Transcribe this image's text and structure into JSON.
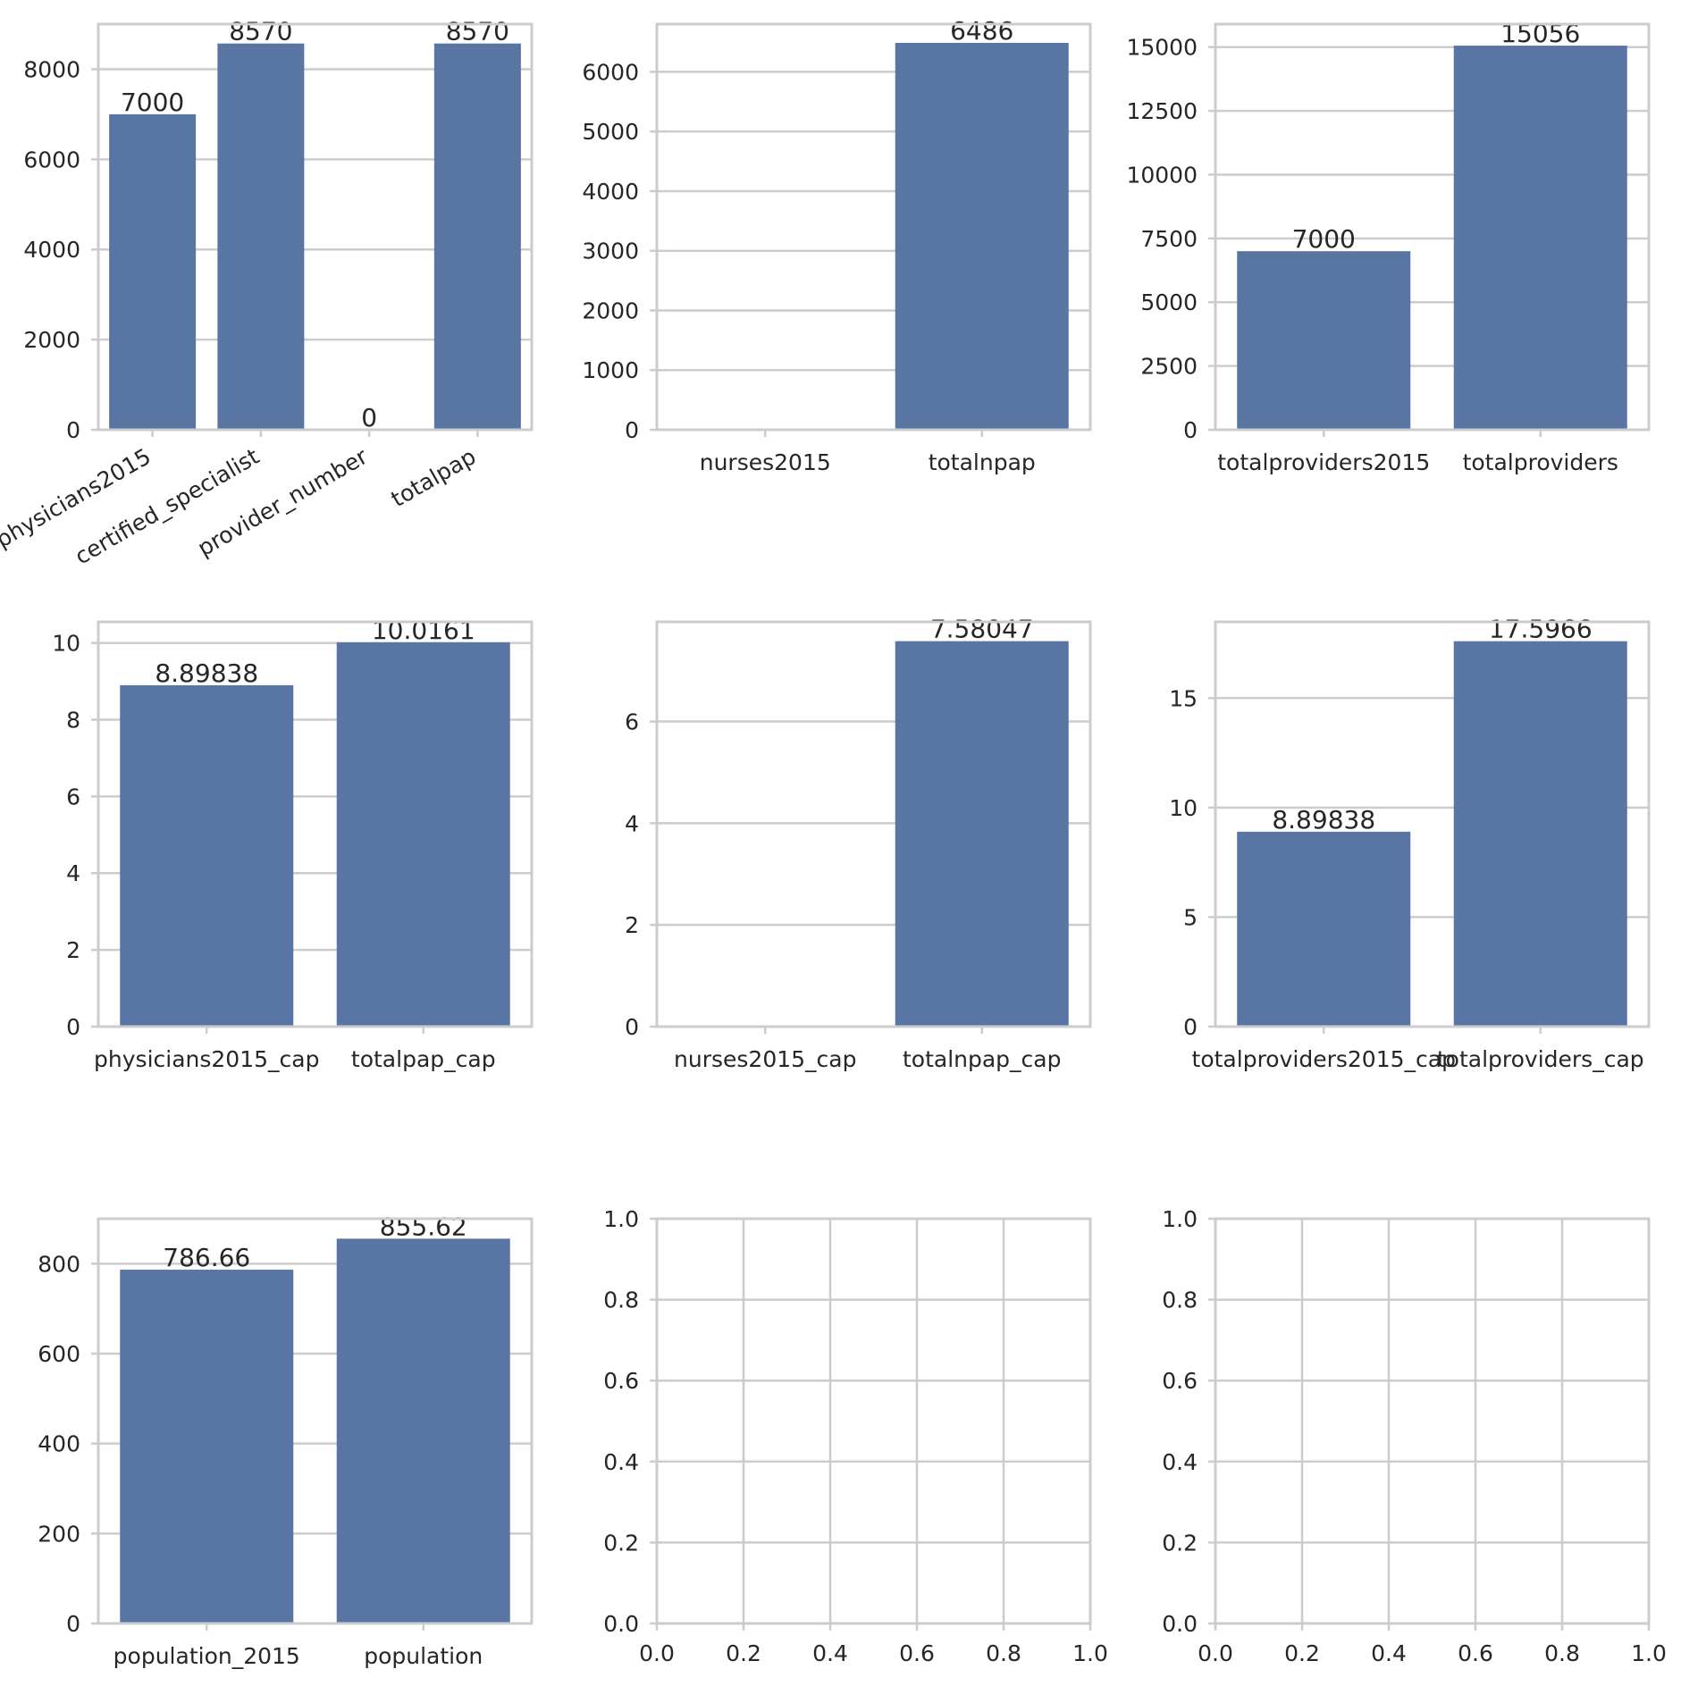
{
  "colors": {
    "bar": "#5975a4",
    "grid": "#cccccc",
    "text": "#262626",
    "background": "#ffffff"
  },
  "chart_data": [
    {
      "type": "bar",
      "categories": [
        "physicians2015",
        "certified_specialist",
        "provider_number",
        "totalpap"
      ],
      "values": [
        7000,
        8570,
        0,
        8570
      ],
      "value_labels": [
        "7000",
        "8570",
        "0",
        "8570"
      ],
      "ylim": [
        0,
        9000
      ],
      "yticks": [
        0,
        2000,
        4000,
        6000,
        8000
      ],
      "ytick_labels": [
        "0",
        "2000",
        "4000",
        "6000",
        "8000"
      ],
      "xtick_rotation": 30,
      "grid": "horizontal"
    },
    {
      "type": "bar",
      "categories": [
        "nurses2015",
        "totalnpap"
      ],
      "values": [
        null,
        6486
      ],
      "value_labels": [
        null,
        "6486"
      ],
      "ylim": [
        0,
        6800
      ],
      "yticks": [
        0,
        1000,
        2000,
        3000,
        4000,
        5000,
        6000
      ],
      "ytick_labels": [
        "0",
        "1000",
        "2000",
        "3000",
        "4000",
        "5000",
        "6000"
      ],
      "grid": "horizontal"
    },
    {
      "type": "bar",
      "categories": [
        "totalproviders2015",
        "totalproviders"
      ],
      "values": [
        7000,
        15056
      ],
      "value_labels": [
        "7000",
        "15056"
      ],
      "ylim": [
        0,
        15900
      ],
      "yticks": [
        0,
        2500,
        5000,
        7500,
        10000,
        12500,
        15000
      ],
      "ytick_labels": [
        "0",
        "2500",
        "5000",
        "7500",
        "10000",
        "12500",
        "15000"
      ],
      "grid": "horizontal"
    },
    {
      "type": "bar",
      "categories": [
        "physicians2015_cap",
        "totalpap_cap"
      ],
      "values": [
        8.89838,
        10.0161
      ],
      "value_labels": [
        "8.89838",
        "10.0161"
      ],
      "ylim": [
        0,
        10.55
      ],
      "yticks": [
        0,
        2,
        4,
        6,
        8,
        10
      ],
      "ytick_labels": [
        "0",
        "2",
        "4",
        "6",
        "8",
        "10"
      ],
      "grid": "horizontal"
    },
    {
      "type": "bar",
      "categories": [
        "nurses2015_cap",
        "totalnpap_cap"
      ],
      "values": [
        null,
        7.58047
      ],
      "value_labels": [
        null,
        "7.58047"
      ],
      "ylim": [
        0,
        7.96
      ],
      "yticks": [
        0,
        2,
        4,
        6
      ],
      "ytick_labels": [
        "0",
        "2",
        "4",
        "6"
      ],
      "grid": "horizontal"
    },
    {
      "type": "bar",
      "categories": [
        "totalproviders2015_cap",
        "totalproviders_cap"
      ],
      "values": [
        8.89838,
        17.5966
      ],
      "value_labels": [
        "8.89838",
        "17.5966"
      ],
      "ylim": [
        0,
        18.48
      ],
      "yticks": [
        0,
        5,
        10,
        15
      ],
      "ytick_labels": [
        "0",
        "5",
        "10",
        "15"
      ],
      "grid": "horizontal"
    },
    {
      "type": "bar",
      "categories": [
        "population_2015",
        "population"
      ],
      "values": [
        786.66,
        855.62
      ],
      "value_labels": [
        "786.66",
        "855.62"
      ],
      "ylim": [
        0,
        900
      ],
      "yticks": [
        0,
        200,
        400,
        600,
        800
      ],
      "ytick_labels": [
        "0",
        "200",
        "400",
        "600",
        "800"
      ],
      "grid": "horizontal"
    },
    {
      "type": "empty",
      "xlim": [
        0,
        1
      ],
      "ylim": [
        0,
        1
      ],
      "xticks": [
        0,
        0.2,
        0.4,
        0.6,
        0.8,
        1.0
      ],
      "xtick_labels": [
        "0.0",
        "0.2",
        "0.4",
        "0.6",
        "0.8",
        "1.0"
      ],
      "yticks": [
        0,
        0.2,
        0.4,
        0.6,
        0.8,
        1.0
      ],
      "ytick_labels": [
        "0.0",
        "0.2",
        "0.4",
        "0.6",
        "0.8",
        "1.0"
      ],
      "grid": "both"
    },
    {
      "type": "empty",
      "xlim": [
        0,
        1
      ],
      "ylim": [
        0,
        1
      ],
      "xticks": [
        0,
        0.2,
        0.4,
        0.6,
        0.8,
        1.0
      ],
      "xtick_labels": [
        "0.0",
        "0.2",
        "0.4",
        "0.6",
        "0.8",
        "1.0"
      ],
      "yticks": [
        0,
        0.2,
        0.4,
        0.6,
        0.8,
        1.0
      ],
      "ytick_labels": [
        "0.0",
        "0.2",
        "0.4",
        "0.6",
        "0.8",
        "1.0"
      ],
      "grid": "both"
    }
  ]
}
